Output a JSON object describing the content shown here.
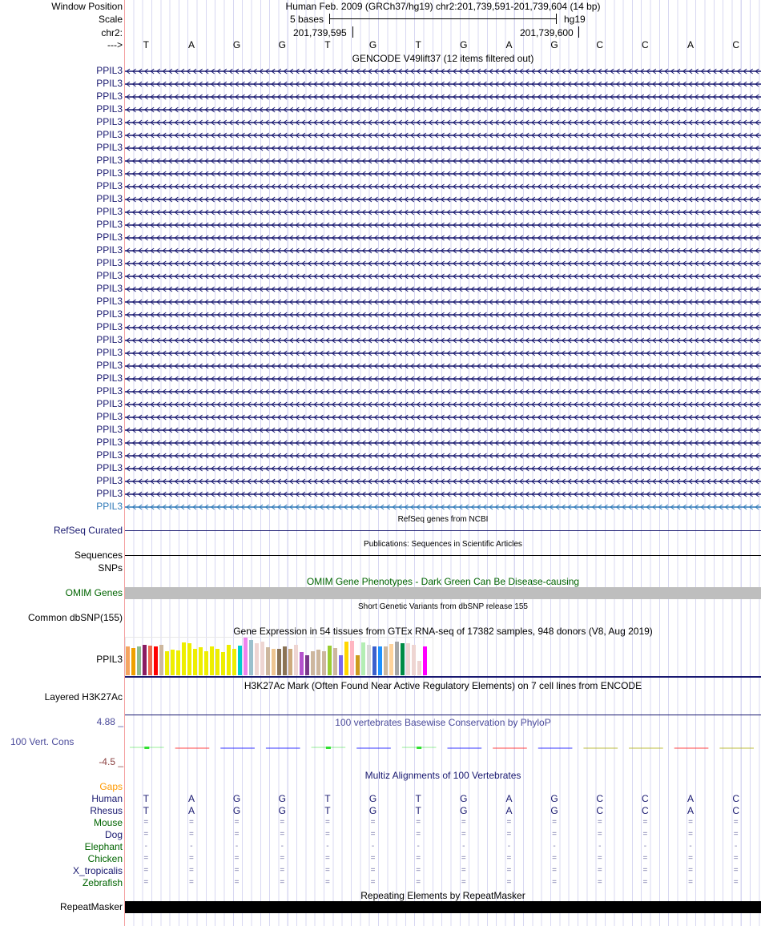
{
  "header": {
    "window_position_label": "Window Position",
    "assembly_position": "Human Feb. 2009 (GRCh37/hg19)   chr2:201,739,591-201,739,604 (14 bp)",
    "scale_label": "Scale",
    "scale_text": "5 bases",
    "scale_db": "hg19",
    "chrom_label": "chr2:",
    "tick_1": "201,739,595",
    "tick_2": "201,739,600",
    "strand_label": "--->",
    "sequence": [
      "T",
      "A",
      "G",
      "G",
      "T",
      "G",
      "T",
      "G",
      "A",
      "G",
      "C",
      "C",
      "A",
      "C"
    ]
  },
  "gencode": {
    "title": "GENCODE V49lift37 (12 items filtered out)",
    "gene_label": "PPIL3",
    "row_count": 35,
    "row_color": "#191970",
    "last_row_color": "#2f79b8"
  },
  "refseq": {
    "title": "RefSeq genes from NCBI",
    "label": "RefSeq Curated"
  },
  "publications": {
    "title": "Publications: Sequences in Scientific Articles",
    "label": "Sequences"
  },
  "snps": {
    "label": "SNPs"
  },
  "omim": {
    "title": "OMIM Gene Phenotypes - Dark Green Can Be Disease-causing",
    "label": "OMIM Genes"
  },
  "dbsnp": {
    "title": "Short Genetic Variants from dbSNP release 155",
    "label": "Common dbSNP(155)"
  },
  "gtex": {
    "title": "Gene Expression in 54 tissues from GTEx RNA-seq of 17382 samples, 948 donors (V8, Aug 2019)",
    "label": "PPIL3"
  },
  "chart_data": {
    "type": "bar",
    "title": "Gene Expression in 54 tissues from GTEx RNA-seq of 17382 samples, 948 donors (V8, Aug 2019)",
    "xlabel": "",
    "ylabel": "",
    "values": [
      36,
      34,
      36,
      38,
      37,
      36,
      38,
      30,
      32,
      31,
      41,
      40,
      33,
      35,
      30,
      36,
      33,
      29,
      38,
      33,
      37,
      47,
      44,
      40,
      42,
      35,
      33,
      33,
      36,
      33,
      38,
      29,
      25,
      30,
      32,
      30,
      37,
      34,
      25,
      42,
      43,
      25,
      41,
      38,
      36,
      36,
      36,
      39,
      42,
      40,
      40,
      38,
      18,
      36
    ],
    "colors": [
      "#f4a460",
      "#f0a000",
      "#8fbc8f",
      "#8b1c62",
      "#ee6a50",
      "#ff0000",
      "#cdb79e",
      "#eeee00",
      "#eeee00",
      "#eeee00",
      "#eeee00",
      "#eeee00",
      "#eeee00",
      "#eeee00",
      "#eeee00",
      "#eeee00",
      "#eeee00",
      "#eeee00",
      "#eeee00",
      "#eeee00",
      "#00cdcd",
      "#ee82ee",
      "#9ac0cd",
      "#eed5d2",
      "#eed5d2",
      "#cdb79e",
      "#eec591",
      "#8b7355",
      "#8b7355",
      "#cdaa7d",
      "#eed5d2",
      "#b452cd",
      "#7a378b",
      "#cdb79e",
      "#cdb79e",
      "#cdb79e",
      "#9acd32",
      "#cdb79e",
      "#7b68ee",
      "#ffd700",
      "#ffb6c1",
      "#cd9b1d",
      "#b4eeb4",
      "#d9d9d9",
      "#3a5fcd",
      "#1e90ff",
      "#cdb79e",
      "#ffd39b",
      "#a6a6a6",
      "#008b45",
      "#eed5d2",
      "#eed5d2",
      "#eed5d2",
      "#ff00ff"
    ],
    "ylim": [
      0,
      47
    ]
  },
  "h3k27ac": {
    "title": "H3K27Ac Mark (Often Found Near Active Regulatory Elements) on 7 cell lines from ENCODE",
    "label": "Layered H3K27Ac"
  },
  "phylop": {
    "title": "100 vertebrates Basewise Conservation by PhyloP",
    "label": "100 Vert. Cons",
    "max_label": "4.88 _",
    "min_label": "-4.5 _",
    "base_colors": {
      "A": "#ff3030",
      "C": "#b5b52a",
      "G": "#2020ff",
      "T": "#30e030"
    }
  },
  "multiz": {
    "title": "Multiz Alignments of 100 Vertebrates",
    "gaps_label": "Gaps",
    "species": [
      {
        "name": "Human",
        "color": "#191970",
        "row": [
          "T",
          "A",
          "G",
          "G",
          "T",
          "G",
          "T",
          "G",
          "A",
          "G",
          "C",
          "C",
          "A",
          "C"
        ]
      },
      {
        "name": "Rhesus",
        "color": "#191970",
        "row": [
          "T",
          "A",
          "G",
          "G",
          "T",
          "G",
          "T",
          "G",
          "A",
          "G",
          "C",
          "C",
          "A",
          "C"
        ]
      },
      {
        "name": "Mouse",
        "color": "#006400",
        "row": [
          "=",
          "=",
          "=",
          "=",
          "=",
          "=",
          "=",
          "=",
          "=",
          "=",
          "=",
          "=",
          "=",
          "="
        ]
      },
      {
        "name": "Dog",
        "color": "#191970",
        "row": [
          "=",
          "=",
          "=",
          "=",
          "=",
          "=",
          "=",
          "=",
          "=",
          "=",
          "=",
          "=",
          "=",
          "="
        ]
      },
      {
        "name": "Elephant",
        "color": "#006400",
        "row": [
          "-",
          "-",
          "-",
          "-",
          "-",
          "-",
          "-",
          "-",
          "-",
          "-",
          "-",
          "-",
          "-",
          "-"
        ]
      },
      {
        "name": "Chicken",
        "color": "#006400",
        "row": [
          "=",
          "=",
          "=",
          "=",
          "=",
          "=",
          "=",
          "=",
          "=",
          "=",
          "=",
          "=",
          "=",
          "="
        ]
      },
      {
        "name": "X_tropicalis",
        "color": "#191970",
        "row": [
          "=",
          "=",
          "=",
          "=",
          "=",
          "=",
          "=",
          "=",
          "=",
          "=",
          "=",
          "=",
          "=",
          "="
        ]
      },
      {
        "name": "Zebrafish",
        "color": "#006400",
        "row": [
          "=",
          "=",
          "=",
          "=",
          "=",
          "=",
          "=",
          "=",
          "=",
          "=",
          "=",
          "=",
          "=",
          "="
        ]
      }
    ]
  },
  "repeatmasker": {
    "title": "Repeating Elements by RepeatMasker",
    "label": "RepeatMasker"
  }
}
